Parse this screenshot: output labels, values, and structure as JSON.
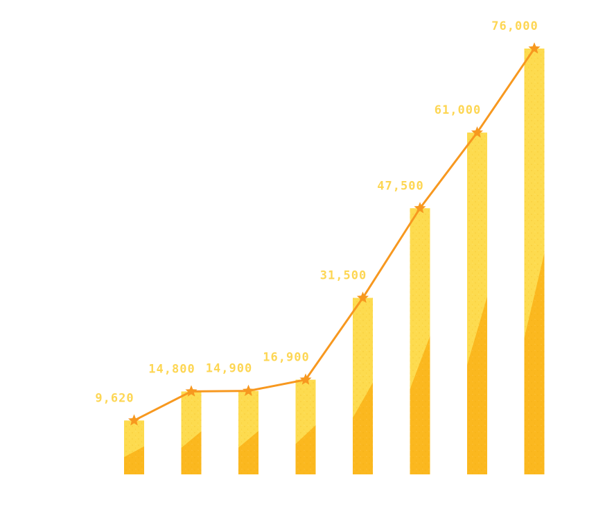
{
  "chart_data": {
    "type": "bar",
    "categories": [
      "",
      "",
      "",
      "",
      "",
      "",
      "",
      ""
    ],
    "values": [
      9620,
      14800,
      14900,
      16900,
      31500,
      47500,
      61000,
      76000
    ],
    "value_labels": [
      "9,620",
      "14,800",
      "14,900",
      "16,900",
      "31,500",
      "47,500",
      "61,000",
      "76,000"
    ],
    "overlay": "line-with-star-markers",
    "ylim": [
      0,
      76000
    ],
    "grid": false,
    "legend": "none",
    "colors": {
      "bar_light": "#fddb4f",
      "bar_dark": "#fbb81f",
      "line": "#f7981f",
      "marker": "#f7981f",
      "label": "#fdd653"
    }
  }
}
